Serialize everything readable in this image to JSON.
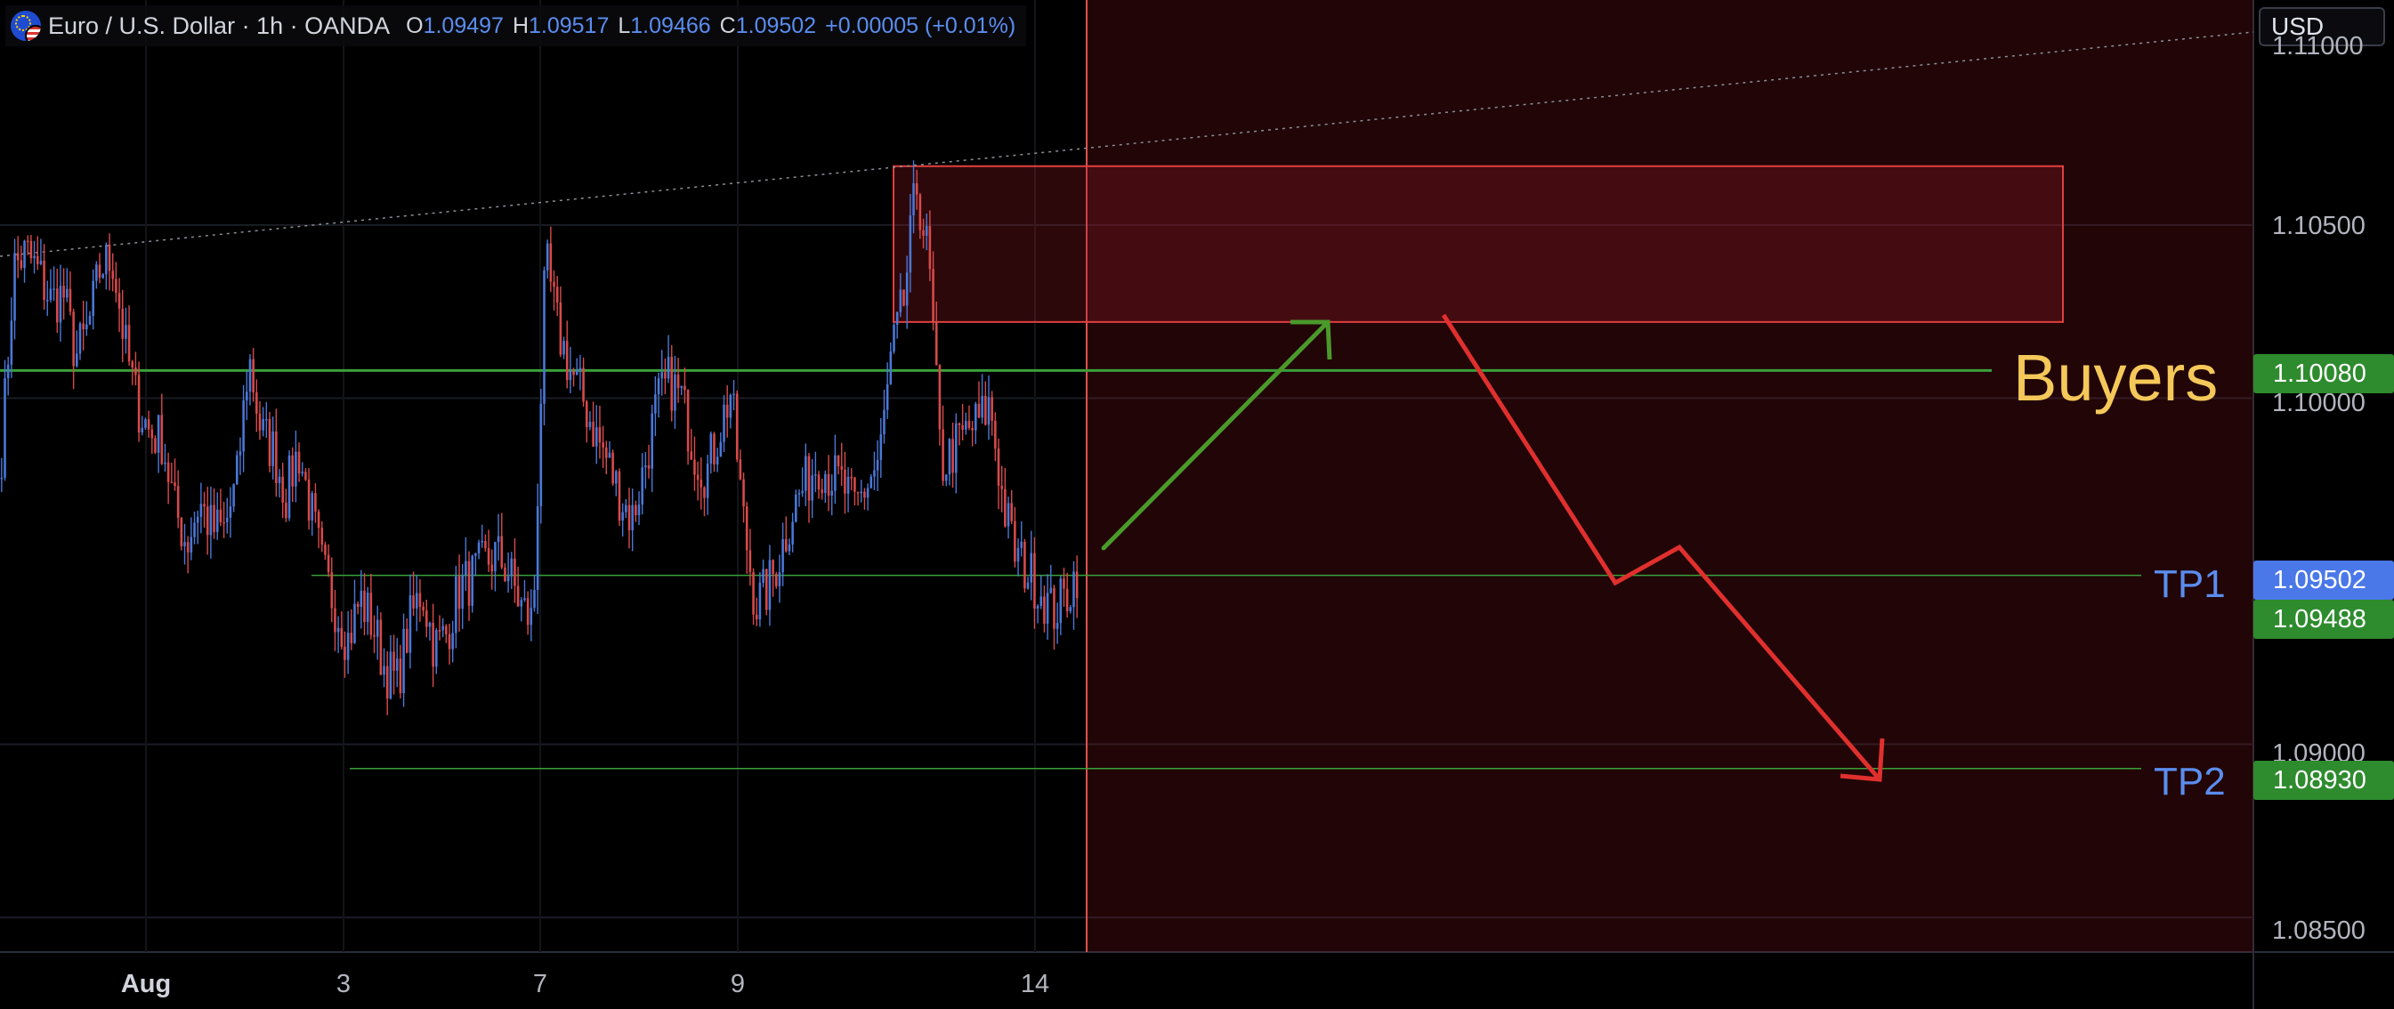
{
  "header": {
    "symbol_title": "Euro / U.S. Dollar · 1h · OANDA",
    "open_key": "O",
    "open_value": "1.09497",
    "high_key": "H",
    "high_value": "1.09517",
    "low_key": "L",
    "low_value": "1.09466",
    "close_key": "C",
    "close_value": "1.09502",
    "change": "+0.00005 (+0.01%)"
  },
  "currency_button": "USD",
  "price_axis": {
    "ticks": [
      "1.11000",
      "1.10500",
      "1.10000",
      "1.09000",
      "1.08500"
    ],
    "tags": {
      "buyers_level": "1.10080",
      "current_price": "1.09502",
      "tp1_level": "1.09488",
      "tp2_level": "1.08930"
    }
  },
  "time_axis": {
    "labels": [
      "Aug",
      "3",
      "7",
      "9",
      "14"
    ]
  },
  "annotations": {
    "buyers": "Buyers",
    "tp1": "TP1",
    "tp2": "TP2"
  },
  "colors": {
    "bull": "#4a78d8",
    "bear": "#d84a4a",
    "green_line": "#3aa13a",
    "red_zone": "#e04040",
    "tag_green": "#2e8b2e",
    "tag_blue": "#4a78e8",
    "buyers_text": "#f5c85a"
  },
  "chart_data": {
    "type": "candlestick",
    "symbol": "EUR/USD",
    "timeframe": "1h",
    "y_axis_range": [
      1.084,
      1.1115
    ],
    "horizontal_levels": [
      1.1008,
      1.09488,
      1.0893
    ],
    "supply_zone": {
      "low": 1.1022,
      "high": 1.1067
    },
    "close_path": [
      1.0985,
      1.1038,
      1.1042,
      1.1036,
      1.1028,
      1.103,
      1.1012,
      1.102,
      1.1038,
      1.104,
      1.1015,
      1.0998,
      1.099,
      1.0988,
      1.0968,
      1.0958,
      1.097,
      1.0962,
      1.0962,
      1.0975,
      1.1012,
      1.099,
      1.0985,
      1.0972,
      1.0985,
      1.0968,
      1.095,
      1.094,
      1.093,
      1.0942,
      1.0935,
      1.0922,
      1.0918,
      1.0935,
      1.0945,
      1.0928,
      1.0932,
      1.0945,
      1.0948,
      1.0952,
      1.0955,
      1.095,
      1.094,
      1.0935,
      1.104,
      1.102,
      1.1008,
      1.1,
      1.099,
      1.0982,
      1.0972,
      1.0965,
      1.098,
      1.0998,
      1.1005,
      1.1,
      1.0985,
      1.0978,
      1.099,
      1.1002,
      1.0965,
      1.094,
      1.0945,
      1.0955,
      1.0968,
      1.0975,
      1.0982,
      1.0978,
      1.0975,
      1.0968,
      1.0975,
      1.0982,
      1.1012,
      1.1028,
      1.1062,
      1.104,
      1.098,
      1.0985,
      1.099,
      1.0993,
      1.0998,
      1.097,
      1.0955,
      1.095,
      1.0945,
      1.0938,
      1.0942,
      1.095
    ]
  }
}
